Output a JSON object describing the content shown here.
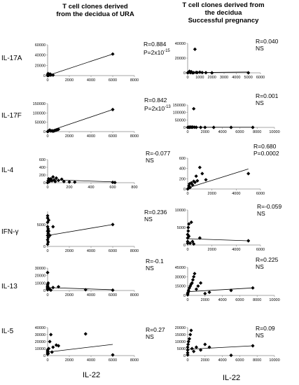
{
  "left_title_line1": "T cell clones derived",
  "left_title_line2": "from the decidua of URA",
  "right_title_line1": "T cell clones derived from",
  "right_title_line2": "the  decidua",
  "right_title_line3": "Successful pregnancy",
  "row_labels": [
    "IL-17A",
    "IL-17F",
    "IL-4",
    "IFN-γ",
    "IL-13",
    "IL-5"
  ],
  "x_axis_label_left": "IL-22",
  "x_axis_label_right": "IL-22",
  "chart_data": [
    {
      "type": "scatter",
      "row": "IL-17A",
      "group": "URA",
      "xlim": [
        0,
        8000
      ],
      "ylim": [
        0,
        60000
      ],
      "x_ticks": [
        "0",
        "2000",
        "4000",
        "6000",
        "8000"
      ],
      "y_ticks": [
        "0",
        "20000",
        "40000",
        "60000"
      ],
      "stat1": "R=0.884",
      "stat2_base": "P=2x10",
      "stat2_exp": "-15",
      "points": [
        [
          0,
          0
        ],
        [
          20,
          2000
        ],
        [
          40,
          4000
        ],
        [
          60,
          1000
        ],
        [
          80,
          3000
        ],
        [
          100,
          500
        ],
        [
          150,
          2500
        ],
        [
          200,
          1500
        ],
        [
          250,
          3000
        ],
        [
          300,
          1000
        ],
        [
          500,
          1000
        ],
        [
          6000,
          42000
        ]
      ],
      "trend": [
        [
          0,
          0
        ],
        [
          6000,
          42000
        ]
      ]
    },
    {
      "type": "scatter",
      "row": "IL-17A",
      "group": "Successful pregnancy",
      "xlim": [
        0,
        6000
      ],
      "ylim": [
        0,
        40000
      ],
      "x_ticks": [
        "0",
        "1000",
        "2000",
        "3000",
        "4000",
        "5000",
        "6000"
      ],
      "y_ticks": [
        "0",
        "20000",
        "40000"
      ],
      "stat1": "R=0.040",
      "stat2": "NS",
      "points": [
        [
          0,
          0
        ],
        [
          50,
          500
        ],
        [
          100,
          1000
        ],
        [
          150,
          2000
        ],
        [
          200,
          500
        ],
        [
          250,
          300
        ],
        [
          300,
          1500
        ],
        [
          400,
          0
        ],
        [
          500,
          200
        ],
        [
          600,
          32000
        ],
        [
          700,
          500
        ],
        [
          800,
          300
        ],
        [
          1000,
          800
        ],
        [
          1200,
          300
        ],
        [
          1500,
          200
        ],
        [
          2000,
          0
        ],
        [
          5000,
          0
        ]
      ],
      "trend": [
        [
          0,
          200
        ],
        [
          5000,
          1000
        ]
      ]
    },
    {
      "type": "scatter",
      "row": "IL-17F",
      "group": "URA",
      "xlim": [
        0,
        8000
      ],
      "ylim": [
        0,
        150000
      ],
      "x_ticks": [
        "0",
        "2000",
        "4000",
        "6000",
        "8000"
      ],
      "y_ticks": [
        "0",
        "50000",
        "100000",
        "150000"
      ],
      "stat1": "R=0.842",
      "stat2_base": "P=2x10",
      "stat2_exp": "-13",
      "points": [
        [
          0,
          0
        ],
        [
          50,
          2000
        ],
        [
          100,
          4000
        ],
        [
          150,
          6000
        ],
        [
          200,
          8000
        ],
        [
          300,
          3000
        ],
        [
          400,
          5000
        ],
        [
          500,
          2000
        ],
        [
          600,
          4000
        ],
        [
          700,
          6000
        ],
        [
          800,
          8000
        ],
        [
          900,
          10000
        ],
        [
          1000,
          12000
        ],
        [
          6000,
          118000
        ]
      ],
      "trend": [
        [
          0,
          0
        ],
        [
          6000,
          118000
        ]
      ]
    },
    {
      "type": "scatter",
      "row": "IL-17F",
      "group": "Successful pregnancy",
      "xlim": [
        0,
        10000
      ],
      "ylim": [
        0,
        150000
      ],
      "x_ticks": [
        "0",
        "2000",
        "4000",
        "6000",
        "8000",
        "10000"
      ],
      "y_ticks": [
        "0",
        "50000",
        "100000",
        "150000"
      ],
      "stat1": "R=0.001",
      "stat2": "NS",
      "points": [
        [
          0,
          0
        ],
        [
          100,
          1000
        ],
        [
          200,
          500
        ],
        [
          300,
          2000
        ],
        [
          400,
          1500
        ],
        [
          500,
          1000
        ],
        [
          600,
          2000
        ],
        [
          700,
          125000
        ],
        [
          800,
          1000
        ],
        [
          1000,
          500
        ],
        [
          1500,
          0
        ],
        [
          2000,
          0
        ],
        [
          3000,
          0
        ],
        [
          5000,
          0
        ],
        [
          7500,
          0
        ]
      ],
      "trend": [
        [
          0,
          1000
        ],
        [
          7500,
          1000
        ]
      ]
    },
    {
      "type": "scatter",
      "row": "IL-4",
      "group": "URA",
      "xlim": [
        0,
        800
      ],
      "ylim": [
        0,
        600
      ],
      "x_ticks": [
        "0",
        "200",
        "400",
        "600",
        "800"
      ],
      "y_ticks": [
        "0",
        "200",
        "400",
        "600"
      ],
      "stat1": "R=-0.077",
      "stat2": "NS",
      "points": [
        [
          0,
          0
        ],
        [
          5,
          50
        ],
        [
          10,
          100
        ],
        [
          15,
          30
        ],
        [
          20,
          80
        ],
        [
          25,
          60
        ],
        [
          30,
          100
        ],
        [
          40,
          50
        ],
        [
          50,
          150
        ],
        [
          60,
          70
        ],
        [
          70,
          30
        ],
        [
          80,
          120
        ],
        [
          100,
          60
        ],
        [
          130,
          90
        ],
        [
          150,
          30
        ],
        [
          200,
          20
        ],
        [
          250,
          15
        ],
        [
          600,
          10
        ],
        [
          620,
          5
        ]
      ],
      "trend": [
        [
          0,
          80
        ],
        [
          620,
          20
        ]
      ]
    },
    {
      "type": "scatter",
      "row": "IL-4",
      "group": "Successful pregnancy",
      "xlim": [
        0,
        6000
      ],
      "ylim": [
        0,
        600
      ],
      "x_ticks": [
        "0",
        "2000",
        "4000",
        "6000"
      ],
      "y_ticks": [
        "0",
        "200",
        "400",
        "600"
      ],
      "stat1": "R=0.680",
      "stat2": "P=0.0002",
      "points": [
        [
          0,
          0
        ],
        [
          50,
          10
        ],
        [
          100,
          60
        ],
        [
          150,
          100
        ],
        [
          200,
          30
        ],
        [
          300,
          120
        ],
        [
          400,
          80
        ],
        [
          500,
          150
        ],
        [
          600,
          130
        ],
        [
          700,
          250
        ],
        [
          800,
          160
        ],
        [
          1000,
          420
        ],
        [
          1200,
          300
        ],
        [
          1500,
          180
        ],
        [
          5000,
          300
        ]
      ],
      "trend": [
        [
          0,
          20
        ],
        [
          5000,
          390
        ]
      ]
    },
    {
      "type": "scatter",
      "row": "IFN-γ",
      "group": "URA",
      "xlim": [
        0,
        8000
      ],
      "ylim": [
        0,
        8000
      ],
      "x_ticks": [
        "0",
        "2000",
        "4000",
        "6000",
        "8000"
      ],
      "y_ticks": [
        "0",
        "5000"
      ],
      "stat1": "R=0.236",
      "stat2": "NS",
      "points": [
        [
          0,
          500
        ],
        [
          0,
          1500
        ],
        [
          0,
          2500
        ],
        [
          0,
          3500
        ],
        [
          0,
          4500
        ],
        [
          0,
          5500
        ],
        [
          0,
          6500
        ],
        [
          0,
          7000
        ],
        [
          50,
          1000
        ],
        [
          50,
          2000
        ],
        [
          50,
          3000
        ],
        [
          50,
          4000
        ],
        [
          100,
          6000
        ],
        [
          100,
          3500
        ],
        [
          200,
          2500
        ],
        [
          500,
          4500
        ],
        [
          6000,
          5000
        ]
      ],
      "trend": [
        [
          0,
          2500
        ],
        [
          6000,
          5000
        ]
      ]
    },
    {
      "type": "scatter",
      "row": "IFN-γ",
      "group": "Successful pregnancy",
      "xlim": [
        0,
        6000
      ],
      "ylim": [
        0,
        10000
      ],
      "x_ticks": [
        "0",
        "2000",
        "4000",
        "6000"
      ],
      "y_ticks": [
        "0",
        "5000",
        "10000"
      ],
      "stat1": "R=-0.059",
      "stat2": "NS",
      "points": [
        [
          0,
          500
        ],
        [
          0,
          1000
        ],
        [
          0,
          2000
        ],
        [
          0,
          3000
        ],
        [
          50,
          4000
        ],
        [
          50,
          5000
        ],
        [
          100,
          6000
        ],
        [
          100,
          2500
        ],
        [
          200,
          500
        ],
        [
          300,
          6500
        ],
        [
          400,
          1000
        ],
        [
          500,
          300
        ],
        [
          1000,
          2000
        ],
        [
          5000,
          1200
        ]
      ],
      "trend": [
        [
          0,
          1800
        ],
        [
          5000,
          1200
        ]
      ]
    },
    {
      "type": "scatter",
      "row": "IL-13",
      "group": "URA",
      "xlim": [
        0,
        8000
      ],
      "ylim": [
        0,
        30000
      ],
      "x_ticks": [
        "0",
        "2000",
        "4000",
        "6000",
        "8000"
      ],
      "y_ticks": [
        "0",
        "10000",
        "20000",
        "30000"
      ],
      "stat1": "R=-0.1",
      "stat2": "NS",
      "points": [
        [
          0,
          24000
        ],
        [
          0,
          1000
        ],
        [
          0,
          2000
        ],
        [
          0,
          3000
        ],
        [
          0,
          4000
        ],
        [
          0,
          5000
        ],
        [
          0,
          6000
        ],
        [
          0,
          8000
        ],
        [
          50,
          10000
        ],
        [
          100,
          3000
        ],
        [
          200,
          1500
        ],
        [
          300,
          500
        ],
        [
          500,
          4000
        ],
        [
          1000,
          5000
        ],
        [
          3500,
          1000
        ],
        [
          6000,
          500
        ]
      ],
      "trend": [
        [
          0,
          4000
        ],
        [
          6000,
          1000
        ]
      ]
    },
    {
      "type": "scatter",
      "row": "IL-13",
      "group": "Successful pregnancy",
      "xlim": [
        0,
        10000
      ],
      "ylim": [
        0,
        45000
      ],
      "x_ticks": [
        "0",
        "2000",
        "4000",
        "6000",
        "8000",
        "10000"
      ],
      "y_ticks": [
        "0",
        "15000",
        "30000",
        "45000"
      ],
      "stat1": "R=0.225",
      "stat2": "NS",
      "points": [
        [
          0,
          1000
        ],
        [
          0,
          3000
        ],
        [
          50,
          5000
        ],
        [
          100,
          8000
        ],
        [
          200,
          12000
        ],
        [
          300,
          15000
        ],
        [
          400,
          18000
        ],
        [
          500,
          20000
        ],
        [
          600,
          25000
        ],
        [
          700,
          30000
        ],
        [
          800,
          35000
        ],
        [
          1000,
          10000
        ],
        [
          1200,
          15000
        ],
        [
          1500,
          20000
        ],
        [
          2000,
          3000
        ],
        [
          2500,
          5000
        ],
        [
          5000,
          8000
        ],
        [
          7500,
          12000
        ]
      ],
      "trend": [
        [
          0,
          6000
        ],
        [
          7500,
          12000
        ]
      ]
    },
    {
      "type": "scatter",
      "row": "IL-5",
      "group": "URA",
      "xlim": [
        0,
        8000
      ],
      "ylim": [
        0,
        40000
      ],
      "x_ticks": [
        "0",
        "2000",
        "4000",
        "6000",
        "8000"
      ],
      "y_ticks": [
        "0",
        "10000",
        "20000",
        "30000",
        "40000"
      ],
      "stat1": "R=0.27",
      "stat2": "NS",
      "points": [
        [
          0,
          2000
        ],
        [
          0,
          4000
        ],
        [
          0,
          6000
        ],
        [
          0,
          8000
        ],
        [
          50,
          3000
        ],
        [
          100,
          10000
        ],
        [
          200,
          20000
        ],
        [
          300,
          30000
        ],
        [
          400,
          5000
        ],
        [
          500,
          12000
        ],
        [
          800,
          15000
        ],
        [
          1000,
          14000
        ],
        [
          3500,
          31000
        ],
        [
          6000,
          1000
        ]
      ],
      "trend": [
        [
          0,
          5000
        ],
        [
          6000,
          16000
        ]
      ]
    },
    {
      "type": "scatter",
      "row": "IL-5",
      "group": "Successful pregnancy",
      "xlim": [
        0,
        10000
      ],
      "ylim": [
        0,
        20000
      ],
      "x_ticks": [
        "0",
        "2000",
        "4000",
        "6000",
        "8000",
        "10000"
      ],
      "y_ticks": [
        "0",
        "5000",
        "10000",
        "15000",
        "20000"
      ],
      "stat1": "R=0.09",
      "stat2": "NS",
      "points": [
        [
          0,
          500
        ],
        [
          0,
          2000
        ],
        [
          0,
          4000
        ],
        [
          0,
          6000
        ],
        [
          50,
          8000
        ],
        [
          100,
          10000
        ],
        [
          200,
          12000
        ],
        [
          300,
          15000
        ],
        [
          400,
          18000
        ],
        [
          500,
          5000
        ],
        [
          700,
          3000
        ],
        [
          1000,
          6000
        ],
        [
          1500,
          4000
        ],
        [
          2000,
          8000
        ],
        [
          2500,
          6000
        ],
        [
          5000,
          200
        ],
        [
          7500,
          7000
        ]
      ],
      "trend": [
        [
          0,
          4500
        ],
        [
          7500,
          7000
        ]
      ]
    }
  ]
}
